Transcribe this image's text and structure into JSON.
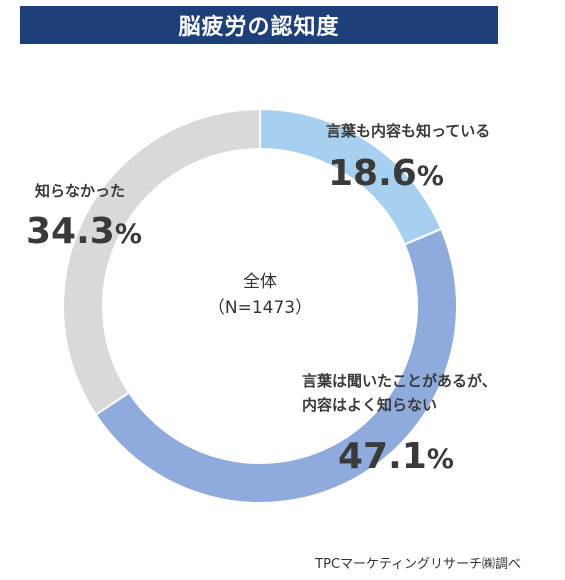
{
  "header": {
    "title": "脳疲労の認知度"
  },
  "center": {
    "line1": "全体",
    "line2": "（N=1473）"
  },
  "source": "TPCマーケティングリサーチ㈱調べ",
  "percent_unit": "%",
  "colors": {
    "title_bg": "#1f3f7a",
    "knows_content": "#a7d0f0",
    "heard_only": "#8faadc",
    "did_not_know": "#d9d9d9"
  },
  "chart_data": {
    "type": "pie",
    "subtype": "donut",
    "title": "脳疲労の認知度",
    "categories": [
      "言葉も内容も知っている",
      "言葉は聞いたことがあるが、内容はよく知らない",
      "知らなかった"
    ],
    "values": [
      18.6,
      47.1,
      34.3
    ],
    "colors": [
      "#a7d0f0",
      "#8faadc",
      "#d9d9d9"
    ],
    "label_lines": [
      [
        "言葉も内容も知っている"
      ],
      [
        "言葉は聞いたことがあるが、",
        "内容はよく知らない"
      ],
      [
        "知らなかった"
      ]
    ],
    "value_labels": [
      "18.6",
      "47.1",
      "34.3"
    ],
    "start": "top (12 o'clock)",
    "direction": "clockwise",
    "legend": "none (direct labels)"
  }
}
